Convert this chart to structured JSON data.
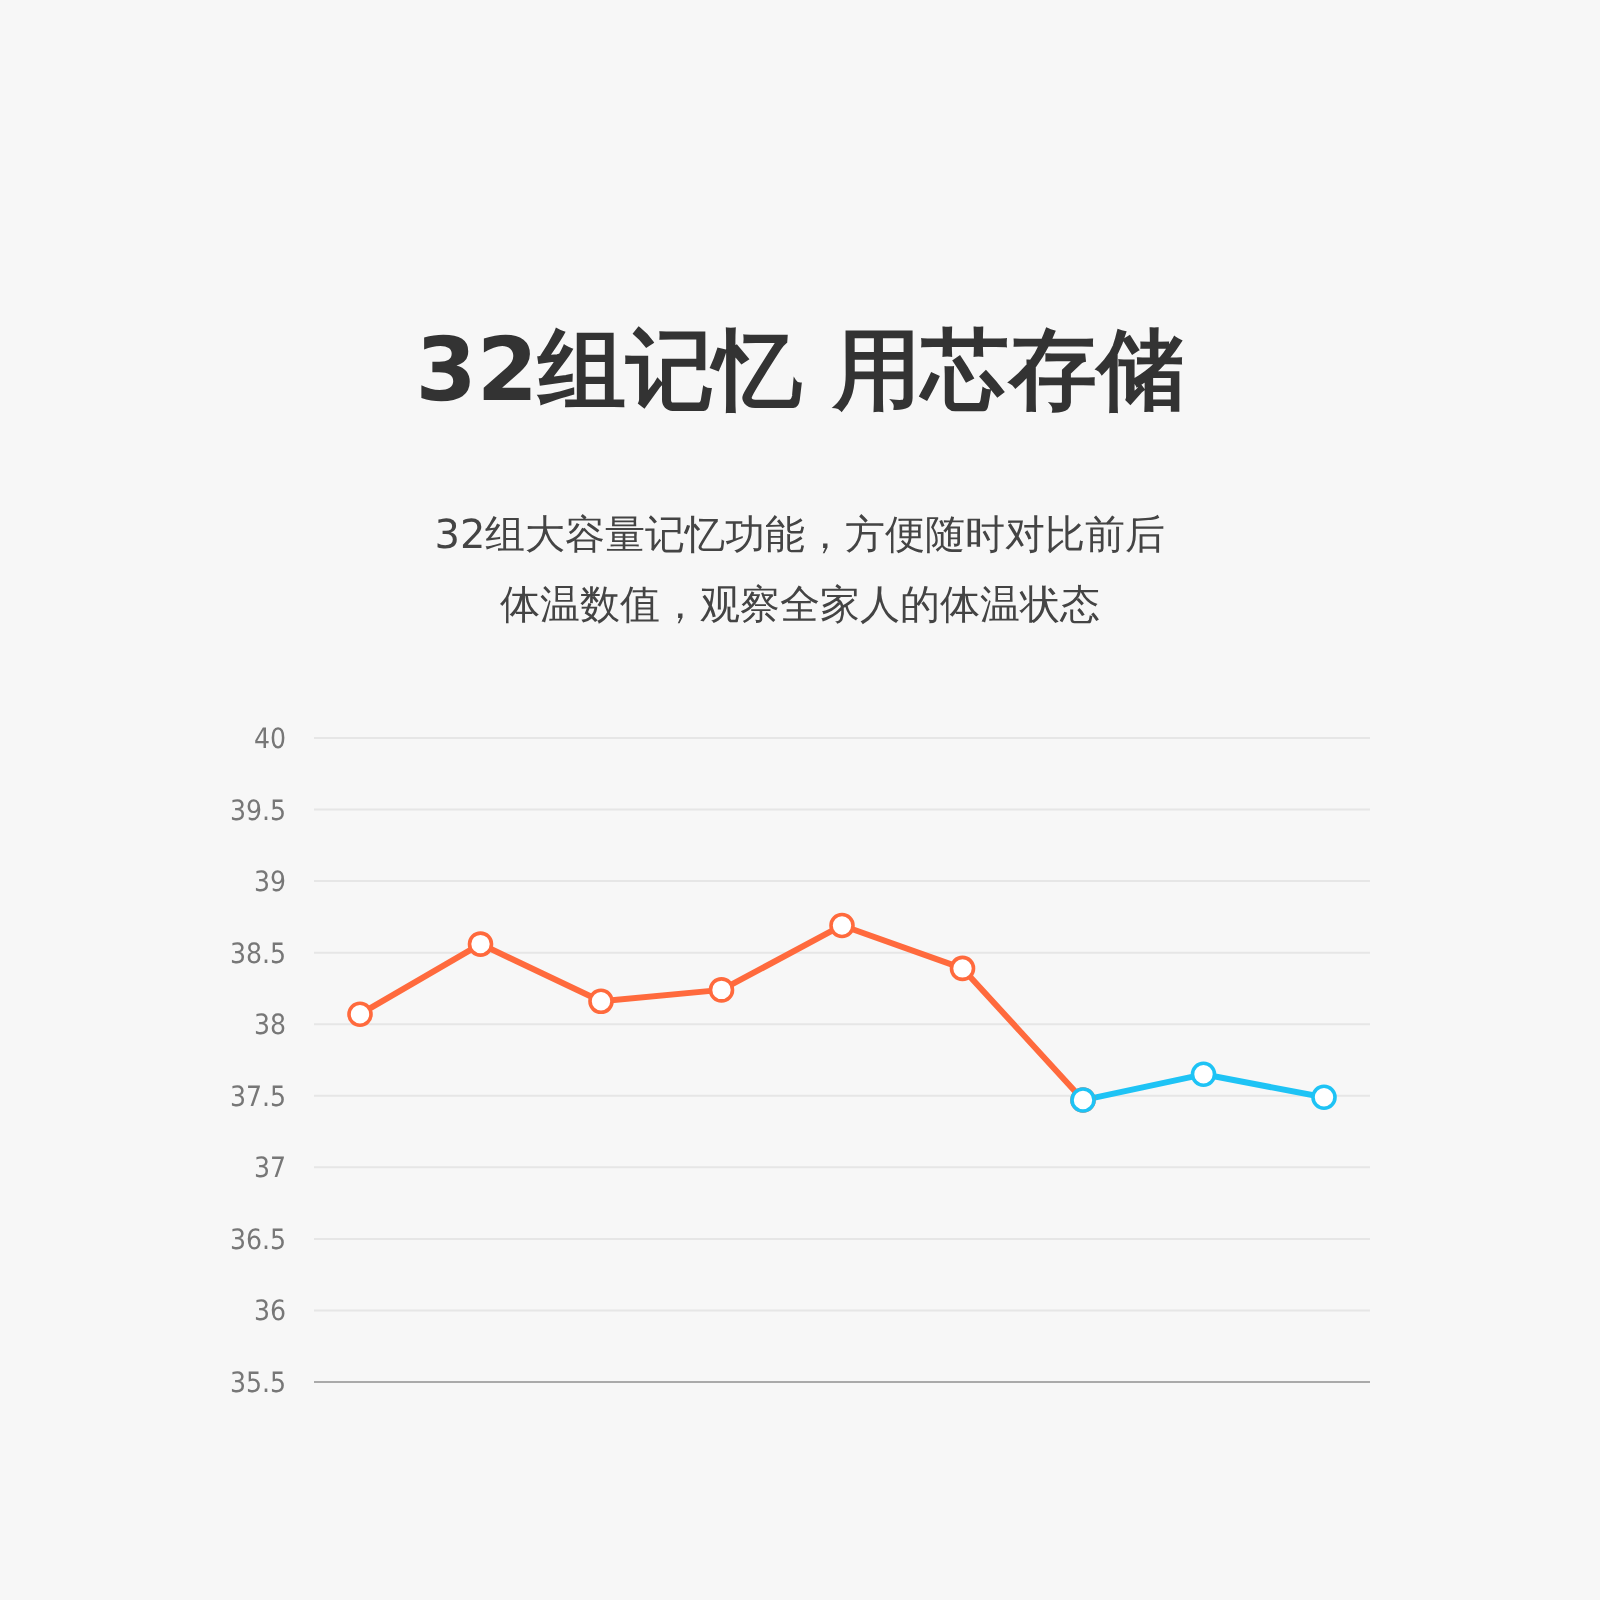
{
  "chart_data": {
    "type": "line",
    "title": "32组记忆 用芯存储",
    "subtitle": "32组大容量记忆功能，方便随时对比前后体温数值，观察全家人的体温状态",
    "categories": [
      null,
      null,
      null,
      null,
      null,
      null,
      null,
      null,
      null
    ],
    "series": [
      {
        "color": "#ff6a3d",
        "values": [
          38.07,
          38.56,
          38.16,
          38.24,
          38.69,
          38.39,
          37.47,
          null,
          null
        ]
      },
      {
        "color": "#1ec3f5",
        "values": [
          null,
          null,
          null,
          null,
          null,
          null,
          37.47,
          37.65,
          37.49
        ]
      }
    ],
    "ylim": [
      35.5,
      40
    ],
    "yticks": [
      35.5,
      36,
      36.5,
      37,
      37.5,
      38,
      38.5,
      39,
      39.5,
      40
    ],
    "grid": "y",
    "marker": "circle",
    "tick_labels": "y"
  }
}
